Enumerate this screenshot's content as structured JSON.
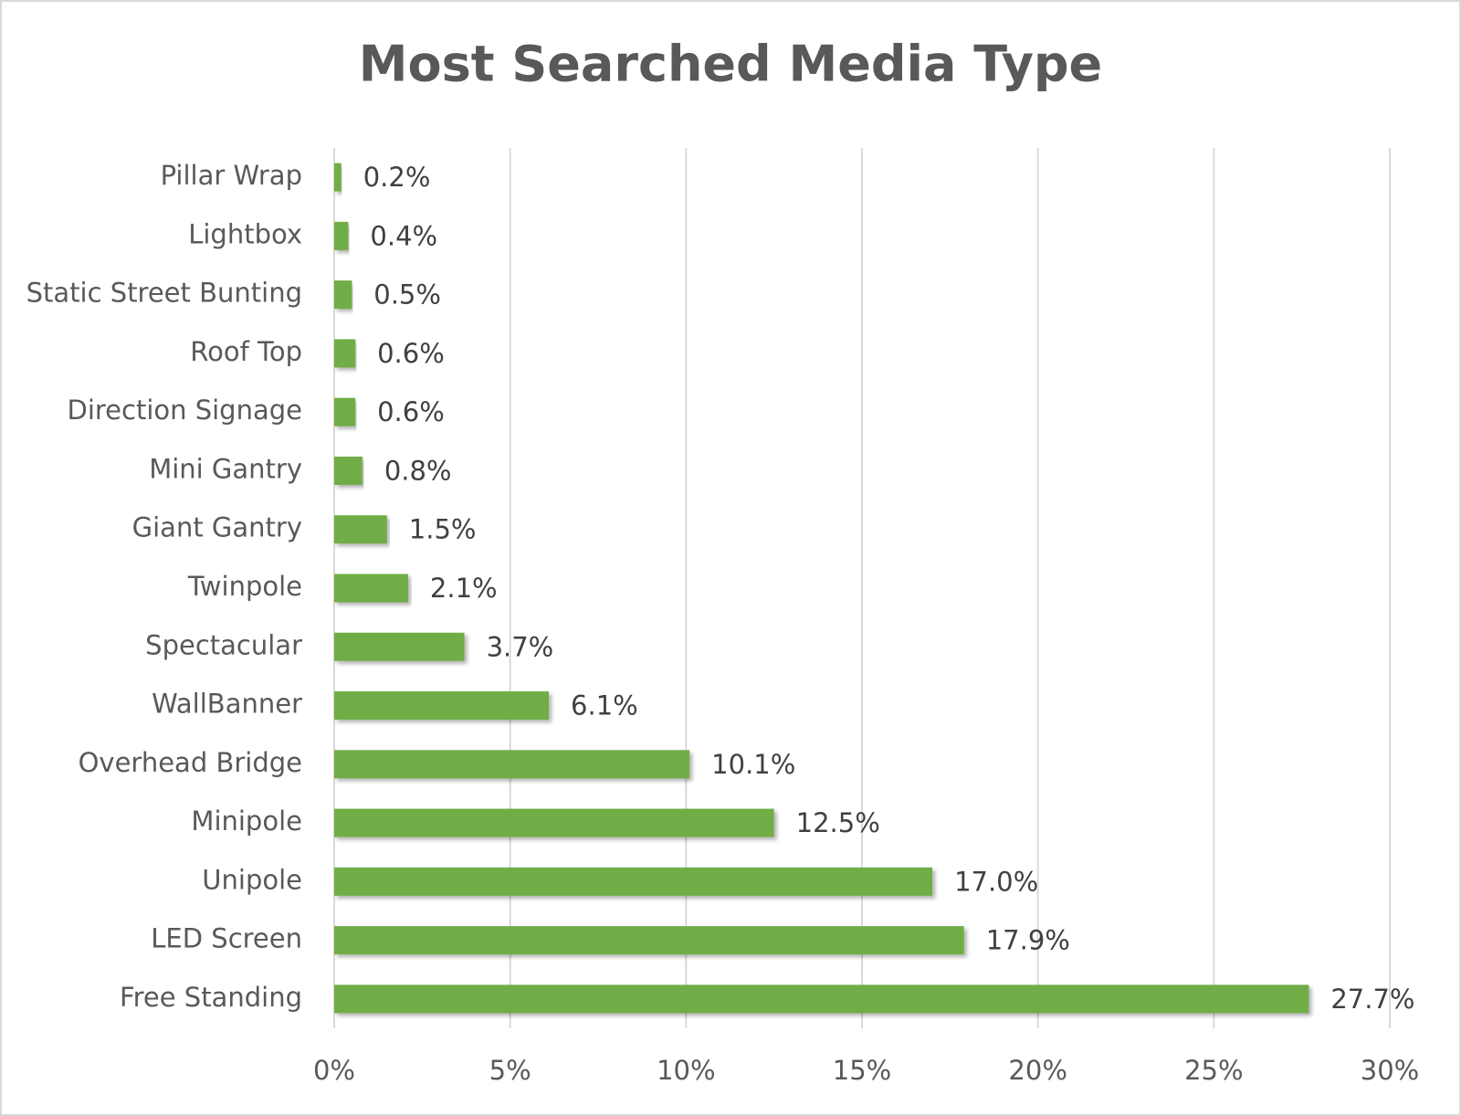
{
  "chart_data": {
    "type": "bar",
    "title": "Most Searched Media Type",
    "categories": [
      "Pillar Wrap",
      "Lightbox",
      "Static Street Bunting",
      "Roof Top",
      "Direction Signage",
      "Mini Gantry",
      "Giant Gantry",
      "Twinpole",
      "Spectacular",
      "WallBanner",
      "Overhead Bridge",
      "Minipole",
      "Unipole",
      "LED Screen",
      "Free Standing"
    ],
    "values": [
      0.2,
      0.4,
      0.5,
      0.6,
      0.6,
      0.8,
      1.5,
      2.1,
      3.7,
      6.1,
      10.1,
      12.5,
      17.0,
      17.9,
      27.7
    ],
    "value_labels": [
      "0.2%",
      "0.4%",
      "0.5%",
      "0.6%",
      "0.6%",
      "0.8%",
      "1.5%",
      "2.1%",
      "3.7%",
      "6.1%",
      "10.1%",
      "12.5%",
      "17.0%",
      "17.9%",
      "27.7%"
    ],
    "color": "#70ad47",
    "xlim": [
      0,
      30
    ],
    "xticks": [
      {
        "value": 0,
        "label": "0%"
      },
      {
        "value": 5,
        "label": "5%"
      },
      {
        "value": 10,
        "label": "10%"
      },
      {
        "value": 15,
        "label": "15%"
      },
      {
        "value": 20,
        "label": "20%"
      },
      {
        "value": 25,
        "label": "25%"
      },
      {
        "value": 30,
        "label": "30%"
      }
    ],
    "grid": true
  }
}
